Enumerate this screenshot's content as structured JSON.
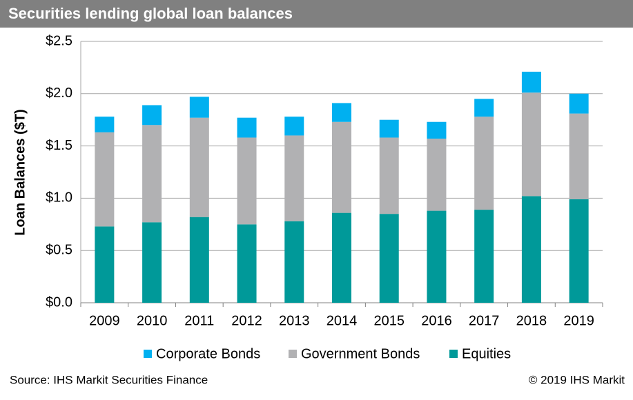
{
  "chart_data": {
    "type": "stacked_bar",
    "title": "Securities lending global loan balances",
    "y_label": "Loan Balances ($T)",
    "source": "Source: IHS Markit  Securities Finance",
    "copyright": "© 2019 IHS Markit",
    "categories": [
      "2009",
      "2010",
      "2011",
      "2012",
      "2013",
      "2014",
      "2015",
      "2016",
      "2017",
      "2018",
      "2019"
    ],
    "series": [
      {
        "name": "Corporate Bonds",
        "color": "#00b0f0",
        "values": [
          0.15,
          0.19,
          0.2,
          0.19,
          0.18,
          0.18,
          0.17,
          0.16,
          0.17,
          0.2,
          0.19
        ]
      },
      {
        "name": "Government Bonds",
        "color": "#b1b1b3",
        "values": [
          0.9,
          0.93,
          0.95,
          0.83,
          0.82,
          0.87,
          0.73,
          0.69,
          0.89,
          0.99,
          0.82
        ]
      },
      {
        "name": "Equities",
        "color": "#009999",
        "values": [
          0.73,
          0.77,
          0.82,
          0.75,
          0.78,
          0.86,
          0.85,
          0.88,
          0.89,
          1.02,
          0.99
        ]
      }
    ],
    "ylim": [
      0,
      2.5
    ],
    "yticks": [
      {
        "value": 0,
        "label": "$0.0"
      },
      {
        "value": 0.5,
        "label": "$0.5"
      },
      {
        "value": 1,
        "label": "$1.0"
      },
      {
        "value": 1.5,
        "label": "$1.5"
      },
      {
        "value": 2,
        "label": "$2.0"
      },
      {
        "value": 2.5,
        "label": "$2.5"
      }
    ],
    "grid": true
  }
}
